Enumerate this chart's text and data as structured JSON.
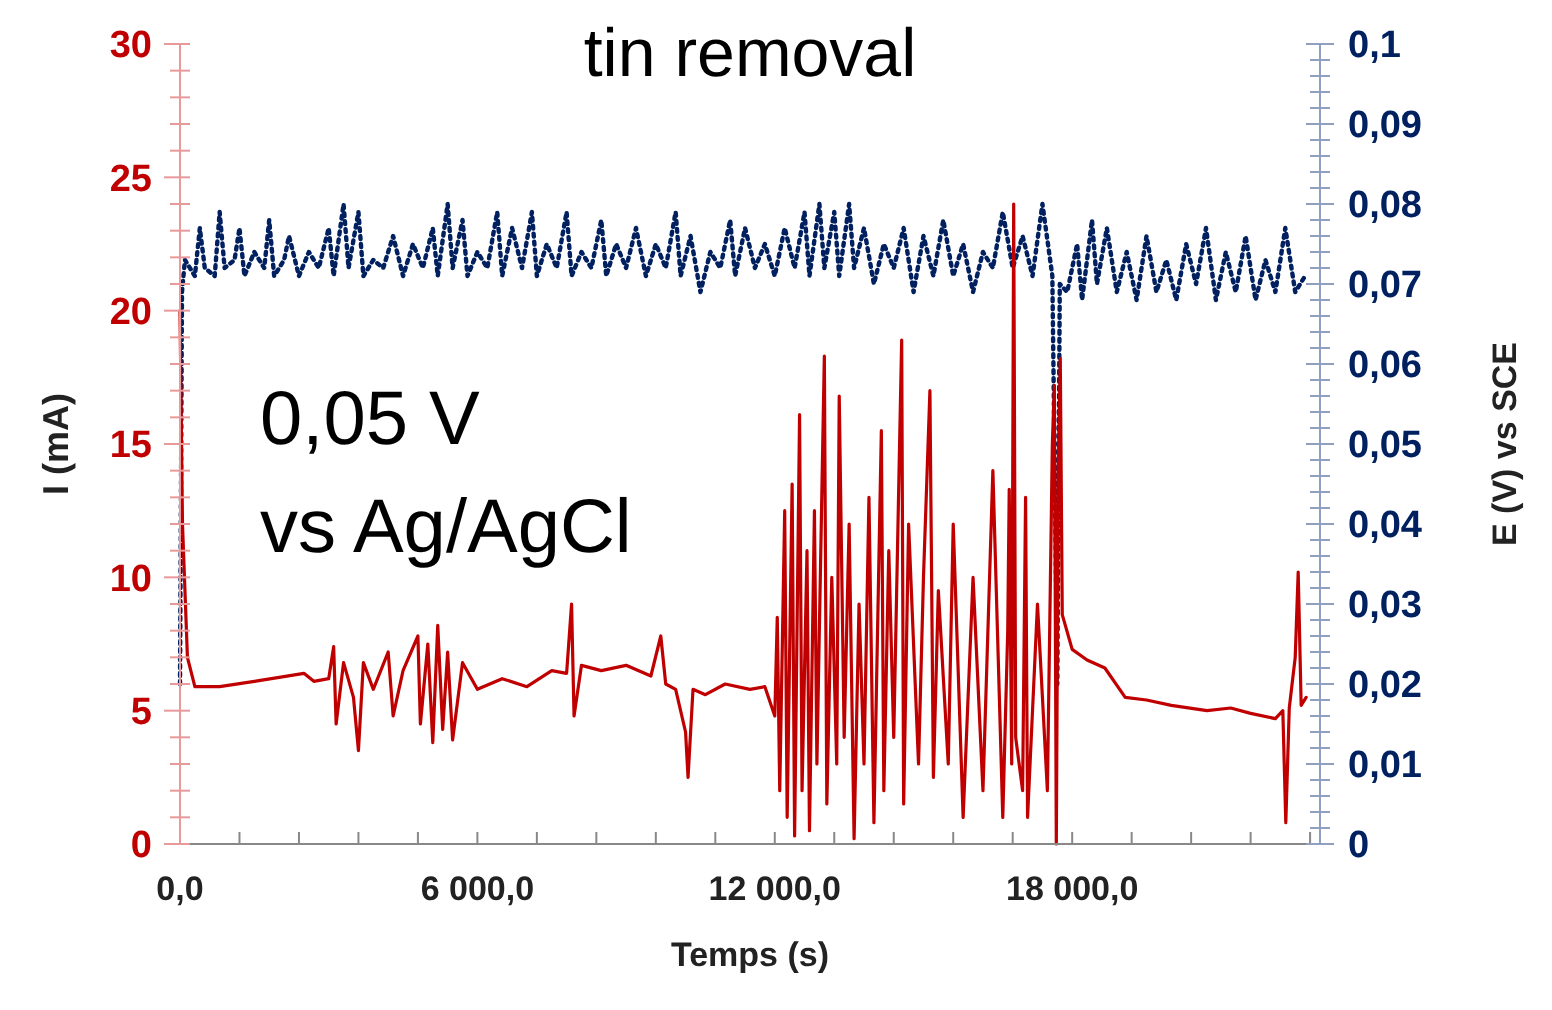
{
  "chart_data": {
    "type": "line",
    "title": "tin removal",
    "xlabel": "Temps (s)",
    "ylabel": "I (mA)",
    "y2label": "E (V) vs SCE",
    "annotations": [
      "0,05 V",
      "vs Ag/AgCl"
    ],
    "xlim": [
      0,
      23000
    ],
    "ylim": [
      0,
      30
    ],
    "y2lim": [
      0,
      0.1
    ],
    "xticks": [
      {
        "value": 0,
        "label": "0,0"
      },
      {
        "value": 1200,
        "label": null
      },
      {
        "value": 2400,
        "label": null
      },
      {
        "value": 3600,
        "label": null
      },
      {
        "value": 4800,
        "label": null
      },
      {
        "value": 6000,
        "label": "6 000,0"
      },
      {
        "value": 7200,
        "label": null
      },
      {
        "value": 8400,
        "label": null
      },
      {
        "value": 9600,
        "label": null
      },
      {
        "value": 10800,
        "label": null
      },
      {
        "value": 12000,
        "label": "12 000,0"
      },
      {
        "value": 13200,
        "label": null
      },
      {
        "value": 14400,
        "label": null
      },
      {
        "value": 15600,
        "label": null
      },
      {
        "value": 16800,
        "label": null
      },
      {
        "value": 18000,
        "label": "18 000,0"
      },
      {
        "value": 19200,
        "label": null
      },
      {
        "value": 20400,
        "label": null
      },
      {
        "value": 21600,
        "label": null
      },
      {
        "value": 22800,
        "label": null
      }
    ],
    "yticks": [
      0,
      {
        "value": 1,
        "label": null
      },
      {
        "value": 2,
        "label": null
      },
      {
        "value": 3,
        "label": null
      },
      {
        "value": 4,
        "label": null
      },
      5,
      {
        "value": 6,
        "label": null
      },
      {
        "value": 7,
        "label": null
      },
      {
        "value": 8,
        "label": null
      },
      {
        "value": 9,
        "label": null
      },
      10,
      {
        "value": 11,
        "label": null
      },
      {
        "value": 12,
        "label": null
      },
      {
        "value": 13,
        "label": null
      },
      {
        "value": 14,
        "label": null
      },
      15,
      {
        "value": 16,
        "label": null
      },
      {
        "value": 17,
        "label": null
      },
      {
        "value": 18,
        "label": null
      },
      {
        "value": 19,
        "label": null
      },
      20,
      {
        "value": 21,
        "label": null
      },
      {
        "value": 22,
        "label": null
      },
      {
        "value": 23,
        "label": null
      },
      {
        "value": 24,
        "label": null
      },
      25,
      {
        "value": 26,
        "label": null
      },
      {
        "value": 27,
        "label": null
      },
      {
        "value": 28,
        "label": null
      },
      {
        "value": 29,
        "label": null
      },
      30
    ],
    "y2ticks": [
      {
        "value": 0,
        "label": "0"
      },
      {
        "value": 0.002,
        "label": null
      },
      {
        "value": 0.004,
        "label": null
      },
      {
        "value": 0.006,
        "label": null
      },
      {
        "value": 0.008,
        "label": null
      },
      {
        "value": 0.01,
        "label": "0,01"
      },
      {
        "value": 0.012,
        "label": null
      },
      {
        "value": 0.014,
        "label": null
      },
      {
        "value": 0.016,
        "label": null
      },
      {
        "value": 0.018,
        "label": null
      },
      {
        "value": 0.02,
        "label": "0,02"
      },
      {
        "value": 0.022,
        "label": null
      },
      {
        "value": 0.024,
        "label": null
      },
      {
        "value": 0.026,
        "label": null
      },
      {
        "value": 0.028,
        "label": null
      },
      {
        "value": 0.03,
        "label": "0,03"
      },
      {
        "value": 0.032,
        "label": null
      },
      {
        "value": 0.034,
        "label": null
      },
      {
        "value": 0.036,
        "label": null
      },
      {
        "value": 0.038,
        "label": null
      },
      {
        "value": 0.04,
        "label": "0,04"
      },
      {
        "value": 0.042,
        "label": null
      },
      {
        "value": 0.044,
        "label": null
      },
      {
        "value": 0.046,
        "label": null
      },
      {
        "value": 0.048,
        "label": null
      },
      {
        "value": 0.05,
        "label": "0,05"
      },
      {
        "value": 0.052,
        "label": null
      },
      {
        "value": 0.054,
        "label": null
      },
      {
        "value": 0.056,
        "label": null
      },
      {
        "value": 0.058,
        "label": null
      },
      {
        "value": 0.06,
        "label": "0,06"
      },
      {
        "value": 0.062,
        "label": null
      },
      {
        "value": 0.064,
        "label": null
      },
      {
        "value": 0.066,
        "label": null
      },
      {
        "value": 0.068,
        "label": null
      },
      {
        "value": 0.07,
        "label": "0,07"
      },
      {
        "value": 0.072,
        "label": null
      },
      {
        "value": 0.074,
        "label": null
      },
      {
        "value": 0.076,
        "label": null
      },
      {
        "value": 0.078,
        "label": null
      },
      {
        "value": 0.08,
        "label": "0,08"
      },
      {
        "value": 0.082,
        "label": null
      },
      {
        "value": 0.084,
        "label": null
      },
      {
        "value": 0.086,
        "label": null
      },
      {
        "value": 0.088,
        "label": null
      },
      {
        "value": 0.09,
        "label": "0,09"
      },
      {
        "value": 0.092,
        "label": null
      },
      {
        "value": 0.094,
        "label": null
      },
      {
        "value": 0.096,
        "label": null
      },
      {
        "value": 0.098,
        "label": null
      },
      {
        "value": 0.1,
        "label": "0,1"
      }
    ],
    "grid": false,
    "marker": "none",
    "series": [
      {
        "color": "#002060",
        "axis": "y2",
        "line_style": "dotted",
        "x": [
          0,
          40,
          100,
          300,
          400,
          500,
          700,
          800,
          900,
          1100,
          1200,
          1300,
          1500,
          1700,
          1800,
          1900,
          2100,
          2200,
          2400,
          2600,
          2800,
          3000,
          3100,
          3300,
          3400,
          3600,
          3700,
          3900,
          4100,
          4300,
          4500,
          4700,
          4900,
          5100,
          5200,
          5400,
          5500,
          5700,
          5800,
          6000,
          6200,
          6400,
          6500,
          6700,
          6900,
          7100,
          7200,
          7400,
          7600,
          7800,
          7900,
          8100,
          8300,
          8500,
          8600,
          8800,
          9000,
          9200,
          9400,
          9600,
          9800,
          10000,
          10100,
          10300,
          10500,
          10700,
          10900,
          11100,
          11200,
          11400,
          11600,
          11800,
          12000,
          12200,
          12400,
          12600,
          12700,
          12900,
          13000,
          13200,
          13300,
          13500,
          13600,
          13800,
          14000,
          14200,
          14400,
          14600,
          14800,
          15000,
          15200,
          15400,
          15600,
          15800,
          16000,
          16200,
          16400,
          16600,
          16800,
          17000,
          17200,
          17400,
          17600,
          17700,
          17750,
          17900,
          18100,
          18200,
          18400,
          18500,
          18700,
          18900,
          19100,
          19300,
          19500,
          19700,
          19900,
          20100,
          20300,
          20500,
          20700,
          20900,
          21100,
          21300,
          21500,
          21700,
          21900,
          22100,
          22300,
          22500,
          22700
        ],
        "values": [
          0.02,
          0.069,
          0.073,
          0.071,
          0.077,
          0.072,
          0.071,
          0.079,
          0.072,
          0.073,
          0.077,
          0.071,
          0.074,
          0.072,
          0.078,
          0.071,
          0.073,
          0.076,
          0.071,
          0.074,
          0.072,
          0.077,
          0.071,
          0.08,
          0.072,
          0.079,
          0.071,
          0.073,
          0.072,
          0.076,
          0.071,
          0.075,
          0.072,
          0.077,
          0.071,
          0.08,
          0.072,
          0.078,
          0.071,
          0.074,
          0.072,
          0.079,
          0.071,
          0.077,
          0.072,
          0.079,
          0.071,
          0.075,
          0.072,
          0.079,
          0.071,
          0.074,
          0.072,
          0.078,
          0.071,
          0.075,
          0.072,
          0.077,
          0.071,
          0.075,
          0.072,
          0.079,
          0.071,
          0.076,
          0.069,
          0.074,
          0.072,
          0.078,
          0.071,
          0.077,
          0.072,
          0.075,
          0.071,
          0.077,
          0.072,
          0.079,
          0.071,
          0.08,
          0.072,
          0.079,
          0.071,
          0.08,
          0.072,
          0.077,
          0.07,
          0.075,
          0.072,
          0.077,
          0.069,
          0.076,
          0.071,
          0.078,
          0.071,
          0.075,
          0.069,
          0.074,
          0.072,
          0.079,
          0.072,
          0.076,
          0.071,
          0.08,
          0.071,
          0.02,
          0.07,
          0.069,
          0.075,
          0.068,
          0.078,
          0.07,
          0.077,
          0.069,
          0.074,
          0.068,
          0.076,
          0.069,
          0.073,
          0.068,
          0.075,
          0.07,
          0.077,
          0.068,
          0.074,
          0.069,
          0.076,
          0.068,
          0.073,
          0.069,
          0.077,
          0.069,
          0.071
        ]
      },
      {
        "color": "#c00000",
        "x": [
          0,
          50,
          150,
          300,
          800,
          1500,
          2500,
          2700,
          3000,
          3100,
          3150,
          3300,
          3500,
          3600,
          3700,
          3900,
          4200,
          4300,
          4500,
          4800,
          4850,
          5000,
          5100,
          5200,
          5300,
          5400,
          5500,
          5700,
          6000,
          6500,
          7000,
          7500,
          7800,
          7900,
          7950,
          8100,
          8500,
          9000,
          9500,
          9700,
          9800,
          10000,
          10200,
          10250,
          10350,
          10600,
          11000,
          11500,
          11800,
          12000,
          12050,
          12100,
          12200,
          12250,
          12350,
          12400,
          12500,
          12550,
          12650,
          12700,
          12800,
          12850,
          13000,
          13050,
          13150,
          13250,
          13300,
          13400,
          13500,
          13600,
          13700,
          13800,
          13900,
          14000,
          14150,
          14200,
          14300,
          14400,
          14560,
          14600,
          14700,
          14900,
          15000,
          15130,
          15200,
          15300,
          15500,
          15600,
          15800,
          16000,
          16200,
          16400,
          16600,
          16700,
          16730,
          16780,
          16820,
          16860,
          17000,
          17060,
          17100,
          17300,
          17500,
          17600,
          17640,
          17680,
          17720,
          17760,
          17800,
          18000,
          18300,
          18660,
          19070,
          19500,
          20000,
          20720,
          21200,
          21600,
          22100,
          22250,
          22310,
          22380,
          22500,
          22560,
          22620,
          22720
        ],
        "values": [
          20,
          12,
          7,
          5.9,
          5.9,
          6.1,
          6.4,
          6.1,
          6.2,
          7.4,
          4.5,
          6.8,
          5.5,
          3.5,
          6.8,
          5.8,
          7.2,
          4.8,
          6.5,
          7.8,
          4.5,
          7.5,
          3.8,
          8.2,
          4.3,
          7.2,
          3.9,
          6.8,
          5.8,
          6.2,
          5.9,
          6.5,
          6.4,
          9,
          4.8,
          6.7,
          6.5,
          6.7,
          6.3,
          7.8,
          6,
          5.8,
          4.2,
          2.5,
          5.8,
          5.6,
          6,
          5.8,
          5.9,
          4.8,
          8.5,
          2,
          12.5,
          1,
          13.5,
          0.3,
          16.1,
          2,
          11,
          0.5,
          12.5,
          3,
          18.3,
          1.5,
          10,
          3,
          16.8,
          4,
          12,
          0.2,
          9,
          3,
          13,
          0.8,
          15.5,
          2,
          11,
          4,
          18.9,
          1.5,
          12,
          3,
          10,
          17,
          2.5,
          9.5,
          3,
          12,
          1,
          10,
          2,
          14,
          1,
          8,
          13.3,
          3,
          24,
          4,
          2,
          13,
          1,
          9,
          2,
          15,
          17.2,
          0,
          14,
          18.2,
          8.6,
          7.3,
          6.9,
          6.6,
          5.5,
          5.4,
          5.2,
          5,
          5.1,
          4.9,
          4.7,
          5,
          0.8,
          5.1,
          7,
          10.2,
          5.2,
          5.5
        ]
      }
    ]
  }
}
